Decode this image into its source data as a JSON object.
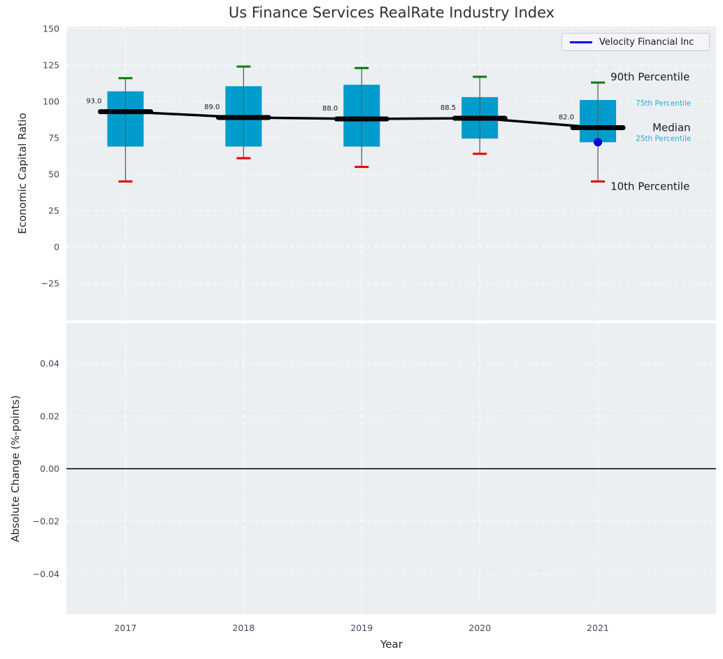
{
  "chart_data": {
    "type": "boxplot",
    "title": "Us Finance Services RealRate Industry Index",
    "xlabel": "Year",
    "categories": [
      "2017",
      "2018",
      "2019",
      "2020",
      "2021"
    ],
    "grid": "white-dashed",
    "legend": {
      "label": "Velocity Financial Inc",
      "position": "upper-right"
    },
    "top_panel": {
      "ylabel": "Economic Capital Ratio",
      "ylim": [
        -50.5,
        151.5
      ],
      "yticks": [
        {
          "v": 150,
          "label": "150"
        },
        {
          "v": 125,
          "label": "125"
        },
        {
          "v": 100,
          "label": "100"
        },
        {
          "v": 75,
          "label": "75"
        },
        {
          "v": 50,
          "label": "50"
        },
        {
          "v": 25,
          "label": "25"
        },
        {
          "v": 0,
          "label": "0"
        },
        {
          "v": -25,
          "label": "−25"
        }
      ],
      "boxes": [
        {
          "year": "2017",
          "p10": 45,
          "p25": 69,
          "median": 93,
          "p75": 107,
          "p90": 116,
          "median_label": "93.0"
        },
        {
          "year": "2018",
          "p10": 61,
          "p25": 69,
          "median": 89,
          "p75": 110.5,
          "p90": 124,
          "median_label": "89.0"
        },
        {
          "year": "2019",
          "p10": 55,
          "p25": 69,
          "median": 88,
          "p75": 111.5,
          "p90": 123,
          "median_label": "88.0"
        },
        {
          "year": "2020",
          "p10": 64,
          "p25": 74.5,
          "median": 88.5,
          "p75": 103,
          "p90": 117,
          "median_label": "88.5"
        },
        {
          "year": "2021",
          "p10": 45,
          "p25": 72,
          "median": 82,
          "p75": 101,
          "p90": 113,
          "median_label": "82.0"
        }
      ],
      "company_series": {
        "name": "Velocity Financial Inc",
        "points": [
          {
            "year": "2021",
            "value": 72
          }
        ]
      },
      "annotations": [
        {
          "text": "90th Percentile",
          "anchor": "p90",
          "size": 15,
          "color": "#1a1a1a"
        },
        {
          "text": "75th Percentile",
          "anchor": "p75",
          "size": 10.5,
          "color": "#2aa7d8"
        },
        {
          "text": "Median",
          "anchor": "median",
          "size": 15,
          "color": "#1a1a1a"
        },
        {
          "text": "25th Percentile",
          "anchor": "p25",
          "size": 10.5,
          "color": "#2aa7d8"
        },
        {
          "text": "10th Percentile",
          "anchor": "p10",
          "size": 15,
          "color": "#1a1a1a"
        }
      ]
    },
    "bottom_panel": {
      "ylabel": "Absolute Change (%-points)",
      "ylim": [
        -0.0553,
        0.0553
      ],
      "yticks": [
        {
          "v": 0.04,
          "label": "0.04"
        },
        {
          "v": 0.02,
          "label": "0.02"
        },
        {
          "v": 0.0,
          "label": "0.00"
        },
        {
          "v": -0.02,
          "label": "−0.02"
        },
        {
          "v": -0.04,
          "label": "−0.04"
        }
      ],
      "zero_line": true
    },
    "colors": {
      "box_fill": "#009ccd",
      "p90_cap": "#008000",
      "p10_cap": "#e60000",
      "whisker": "#5f5f5f",
      "median_line": "#000000",
      "company_point": "#0000d0",
      "legend_line": "#0000ff",
      "plot_bg": "#ebeff1",
      "grid": "#ffffff",
      "tick_text": "#3d4a5c",
      "zero_line": "#000000"
    }
  }
}
